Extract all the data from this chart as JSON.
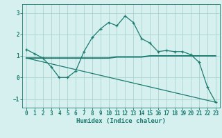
{
  "title": "",
  "xlabel": "Humidex (Indice chaleur)",
  "ylabel": "",
  "bg_color": "#d6f0ef",
  "grid_color": "#aad4d0",
  "line_color": "#1a7a6e",
  "xlim": [
    -0.5,
    23.5
  ],
  "ylim": [
    -1.4,
    3.4
  ],
  "xticks": [
    0,
    1,
    2,
    3,
    4,
    5,
    6,
    7,
    8,
    9,
    10,
    11,
    12,
    13,
    14,
    15,
    16,
    17,
    18,
    19,
    20,
    21,
    22,
    23
  ],
  "yticks": [
    -1,
    0,
    1,
    2,
    3
  ],
  "series1_x": [
    0,
    1,
    2,
    3,
    4,
    5,
    6,
    7,
    8,
    9,
    10,
    11,
    12,
    13,
    14,
    15,
    16,
    17,
    18,
    19,
    20,
    21,
    22,
    23
  ],
  "series1_y": [
    1.3,
    1.1,
    0.9,
    0.5,
    0.0,
    0.0,
    0.3,
    1.2,
    1.85,
    2.25,
    2.55,
    2.4,
    2.85,
    2.55,
    1.8,
    1.6,
    1.2,
    1.25,
    1.2,
    1.2,
    1.05,
    0.7,
    -0.45,
    -1.15
  ],
  "series2_x": [
    0,
    1,
    2,
    3,
    4,
    5,
    6,
    7,
    8,
    9,
    10,
    11,
    12,
    13,
    14,
    15,
    16,
    17,
    18,
    19,
    20,
    21,
    22,
    23
  ],
  "series2_y": [
    0.9,
    0.9,
    0.9,
    0.9,
    0.9,
    0.9,
    0.9,
    0.9,
    0.9,
    0.9,
    0.9,
    0.95,
    0.95,
    0.95,
    0.95,
    1.0,
    1.0,
    1.0,
    1.0,
    1.0,
    1.0,
    1.0,
    1.0,
    1.0
  ],
  "series3_x": [
    0,
    23
  ],
  "series3_y": [
    0.9,
    -1.15
  ],
  "tick_fontsize": 5.5,
  "label_fontsize": 6.5
}
